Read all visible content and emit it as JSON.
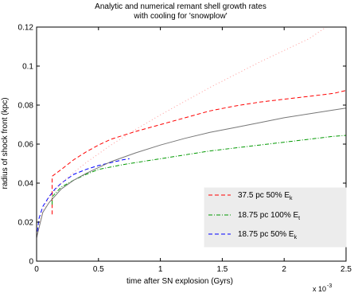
{
  "chart_data": {
    "type": "line",
    "title_lines": [
      "Analytic and numerical remant shell growth rates",
      "with cooling for 'snowplow'"
    ],
    "xlabel": "time after SN explosion (Gyrs)",
    "ylabel": "radius of shock front (kpc)",
    "x_multiplier": "x 10",
    "x_multiplier_exp": "-3",
    "xlim": [
      0,
      2.5
    ],
    "ylim": [
      0,
      0.12
    ],
    "xticks": [
      0,
      0.5,
      1,
      1.5,
      2,
      2.5
    ],
    "xtick_labels": [
      "0",
      "0.5",
      "1",
      "1.5",
      "2",
      "2.5"
    ],
    "yticks": [
      0,
      0.02,
      0.04,
      0.06,
      0.08,
      0.1,
      0.12
    ],
    "ytick_labels": [
      "0",
      "0.02",
      "0.04",
      "0.06",
      "0.08",
      "0.1",
      "0.12"
    ],
    "grid": false,
    "legend_position": "lower-right",
    "series": [
      {
        "name": "37.5 pc 50% E",
        "subscript": "k",
        "color": "#ff0000",
        "style": "dashed",
        "x": [
          0.125,
          0.125,
          0.2,
          0.3,
          0.4,
          0.5,
          0.6,
          0.8,
          1.0,
          1.2,
          1.4,
          1.6,
          1.8,
          2.0,
          2.2,
          2.4,
          2.5
        ],
        "y": [
          0.024,
          0.0435,
          0.047,
          0.052,
          0.056,
          0.0595,
          0.0625,
          0.0665,
          0.07,
          0.0735,
          0.077,
          0.0795,
          0.0815,
          0.083,
          0.0845,
          0.086,
          0.0875
        ]
      },
      {
        "name": "18.75 pc 100% E",
        "subscript": "t",
        "color": "#009900",
        "style": "dashdot",
        "x": [
          0.125,
          0.125,
          0.2,
          0.3,
          0.4,
          0.5,
          0.7,
          0.9,
          1.0,
          1.2,
          1.4,
          1.6,
          1.8,
          2.0,
          2.2,
          2.4,
          2.5
        ],
        "y": [
          0.029,
          0.033,
          0.038,
          0.0415,
          0.0445,
          0.047,
          0.0495,
          0.0515,
          0.0525,
          0.0545,
          0.0565,
          0.058,
          0.0595,
          0.061,
          0.0625,
          0.064,
          0.0645
        ]
      },
      {
        "name": "18.75 pc 50% E",
        "subscript": "k",
        "color": "#0000ff",
        "style": "dashed",
        "x": [
          0.0,
          0.02,
          0.05,
          0.1,
          0.15,
          0.2,
          0.3,
          0.4,
          0.5,
          0.6,
          0.7,
          0.75
        ],
        "y": [
          0.012,
          0.022,
          0.028,
          0.033,
          0.037,
          0.04,
          0.0445,
          0.047,
          0.049,
          0.0505,
          0.052,
          0.0525
        ]
      },
      {
        "name": "",
        "color": "#ff9999",
        "style": "dotted",
        "x": [
          0.0,
          0.05,
          0.1,
          0.2,
          0.3,
          0.4,
          0.6,
          0.8,
          1.0,
          1.2,
          1.4,
          1.6,
          1.8,
          2.0,
          2.2,
          2.34
        ],
        "y": [
          0.012,
          0.026,
          0.0325,
          0.04,
          0.0455,
          0.0505,
          0.0595,
          0.0675,
          0.075,
          0.082,
          0.089,
          0.0955,
          0.102,
          0.108,
          0.114,
          0.12
        ]
      },
      {
        "name": "",
        "color": "#777777",
        "style": "solid",
        "x": [
          0.0,
          0.05,
          0.1,
          0.2,
          0.3,
          0.4,
          0.5,
          0.6,
          0.8,
          1.0,
          1.2,
          1.4,
          1.6,
          1.8,
          2.0,
          2.2,
          2.4,
          2.5
        ],
        "y": [
          0.012,
          0.025,
          0.03,
          0.037,
          0.0415,
          0.045,
          0.048,
          0.051,
          0.0555,
          0.0595,
          0.063,
          0.066,
          0.0685,
          0.071,
          0.0735,
          0.0755,
          0.0775,
          0.0785
        ]
      }
    ]
  }
}
